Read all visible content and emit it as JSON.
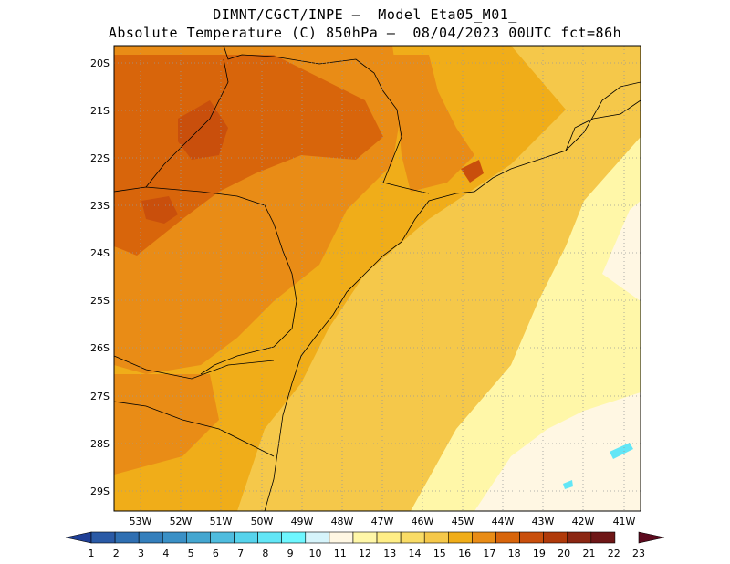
{
  "title": {
    "line1": "DIMNT/CGCT/INPE –  Model Eta05_M01_",
    "line2": "Absolute Temperature (C) 850hPa –  08/04/2023 00UTC fct=86h"
  },
  "map": {
    "lat_labels": [
      "20S",
      "21S",
      "22S",
      "23S",
      "24S",
      "25S",
      "26S",
      "27S",
      "28S",
      "29S"
    ],
    "lon_labels": [
      "53W",
      "52W",
      "51W",
      "50W",
      "49W",
      "48W",
      "47W",
      "46W",
      "45W",
      "44W",
      "43W",
      "42W",
      "41W"
    ]
  },
  "colorbar": {
    "values": [
      "1",
      "2",
      "3",
      "4",
      "5",
      "6",
      "7",
      "8",
      "9",
      "10",
      "11",
      "12",
      "13",
      "14",
      "15",
      "16",
      "17",
      "18",
      "19",
      "20",
      "21",
      "22",
      "23"
    ],
    "colors": [
      "#1f3f96",
      "#2a5aa6",
      "#2f6fb2",
      "#347fbc",
      "#3a90c6",
      "#44a6d0",
      "#4fbcde",
      "#56d3ec",
      "#62e6f6",
      "#6ef7ff",
      "#d6f4fb",
      "#fff7e3",
      "#fff7a8",
      "#ffee86",
      "#f9dc66",
      "#f5c84a",
      "#f0ad19",
      "#e98c16",
      "#d8650b",
      "#c94f0c",
      "#b03a0a",
      "#8b2612",
      "#6e1616",
      "#5c0a1e"
    ]
  }
}
